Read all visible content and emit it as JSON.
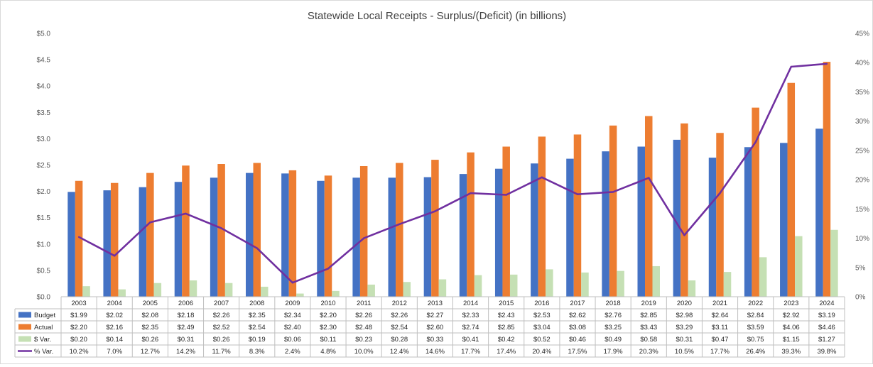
{
  "chart_data": {
    "type": "bar",
    "title": "Statewide Local Receipts - Surplus/(Deficit) (in billions)",
    "categories": [
      "2003",
      "2004",
      "2005",
      "2006",
      "2007",
      "2008",
      "2009",
      "2010",
      "2011",
      "2012",
      "2013",
      "2014",
      "2015",
      "2016",
      "2017",
      "2018",
      "2019",
      "2020",
      "2021",
      "2022",
      "2023",
      "2024"
    ],
    "series": [
      {
        "name": "Budget",
        "kind": "bar",
        "axis": "left",
        "color": "#4472c4",
        "values": [
          1.99,
          2.02,
          2.08,
          2.18,
          2.26,
          2.35,
          2.34,
          2.2,
          2.26,
          2.26,
          2.27,
          2.33,
          2.43,
          2.53,
          2.62,
          2.76,
          2.85,
          2.98,
          2.64,
          2.84,
          2.92,
          3.19
        ],
        "labels": [
          "$1.99",
          "$2.02",
          "$2.08",
          "$2.18",
          "$2.26",
          "$2.35",
          "$2.34",
          "$2.20",
          "$2.26",
          "$2.26",
          "$2.27",
          "$2.33",
          "$2.43",
          "$2.53",
          "$2.62",
          "$2.76",
          "$2.85",
          "$2.98",
          "$2.64",
          "$2.84",
          "$2.92",
          "$3.19"
        ]
      },
      {
        "name": "Actual",
        "kind": "bar",
        "axis": "left",
        "color": "#ed7d31",
        "values": [
          2.2,
          2.16,
          2.35,
          2.49,
          2.52,
          2.54,
          2.4,
          2.3,
          2.48,
          2.54,
          2.6,
          2.74,
          2.85,
          3.04,
          3.08,
          3.25,
          3.43,
          3.29,
          3.11,
          3.59,
          4.06,
          4.46
        ],
        "labels": [
          "$2.20",
          "$2.16",
          "$2.35",
          "$2.49",
          "$2.52",
          "$2.54",
          "$2.40",
          "$2.30",
          "$2.48",
          "$2.54",
          "$2.60",
          "$2.74",
          "$2.85",
          "$3.04",
          "$3.08",
          "$3.25",
          "$3.43",
          "$3.29",
          "$3.11",
          "$3.59",
          "$4.06",
          "$4.46"
        ]
      },
      {
        "name": "$ Var.",
        "kind": "bar",
        "axis": "left",
        "color": "#c5e0b4",
        "values": [
          0.2,
          0.14,
          0.26,
          0.31,
          0.26,
          0.19,
          0.06,
          0.11,
          0.23,
          0.28,
          0.33,
          0.41,
          0.42,
          0.52,
          0.46,
          0.49,
          0.58,
          0.31,
          0.47,
          0.75,
          1.15,
          1.27
        ],
        "labels": [
          "$0.20",
          "$0.14",
          "$0.26",
          "$0.31",
          "$0.26",
          "$0.19",
          "$0.06",
          "$0.11",
          "$0.23",
          "$0.28",
          "$0.33",
          "$0.41",
          "$0.42",
          "$0.52",
          "$0.46",
          "$0.49",
          "$0.58",
          "$0.31",
          "$0.47",
          "$0.75",
          "$1.15",
          "$1.27"
        ]
      },
      {
        "name": "% Var.",
        "kind": "line",
        "axis": "right",
        "color": "#7030a0",
        "values": [
          10.2,
          7.0,
          12.7,
          14.2,
          11.7,
          8.3,
          2.4,
          4.8,
          10.0,
          12.4,
          14.6,
          17.7,
          17.4,
          20.4,
          17.5,
          17.9,
          20.3,
          10.5,
          17.7,
          26.4,
          39.3,
          39.8
        ],
        "labels": [
          "10.2%",
          "7.0%",
          "12.7%",
          "14.2%",
          "11.7%",
          "8.3%",
          "2.4%",
          "4.8%",
          "10.0%",
          "12.4%",
          "14.6%",
          "17.7%",
          "17.4%",
          "20.4%",
          "17.5%",
          "17.9%",
          "20.3%",
          "10.5%",
          "17.7%",
          "26.4%",
          "39.3%",
          "39.8%"
        ]
      }
    ],
    "y_left": {
      "min": 0,
      "max": 5,
      "step": 0.5,
      "ticks": [
        "$0.0",
        "$0.5",
        "$1.0",
        "$1.5",
        "$2.0",
        "$2.5",
        "$3.0",
        "$3.5",
        "$4.0",
        "$4.5",
        "$5.0"
      ]
    },
    "y_right": {
      "min": 0,
      "max": 45,
      "step": 5,
      "ticks": [
        "0%",
        "5%",
        "10%",
        "15%",
        "20%",
        "25%",
        "30%",
        "35%",
        "40%",
        "45%"
      ]
    },
    "grid": false,
    "legend": "data-table"
  }
}
